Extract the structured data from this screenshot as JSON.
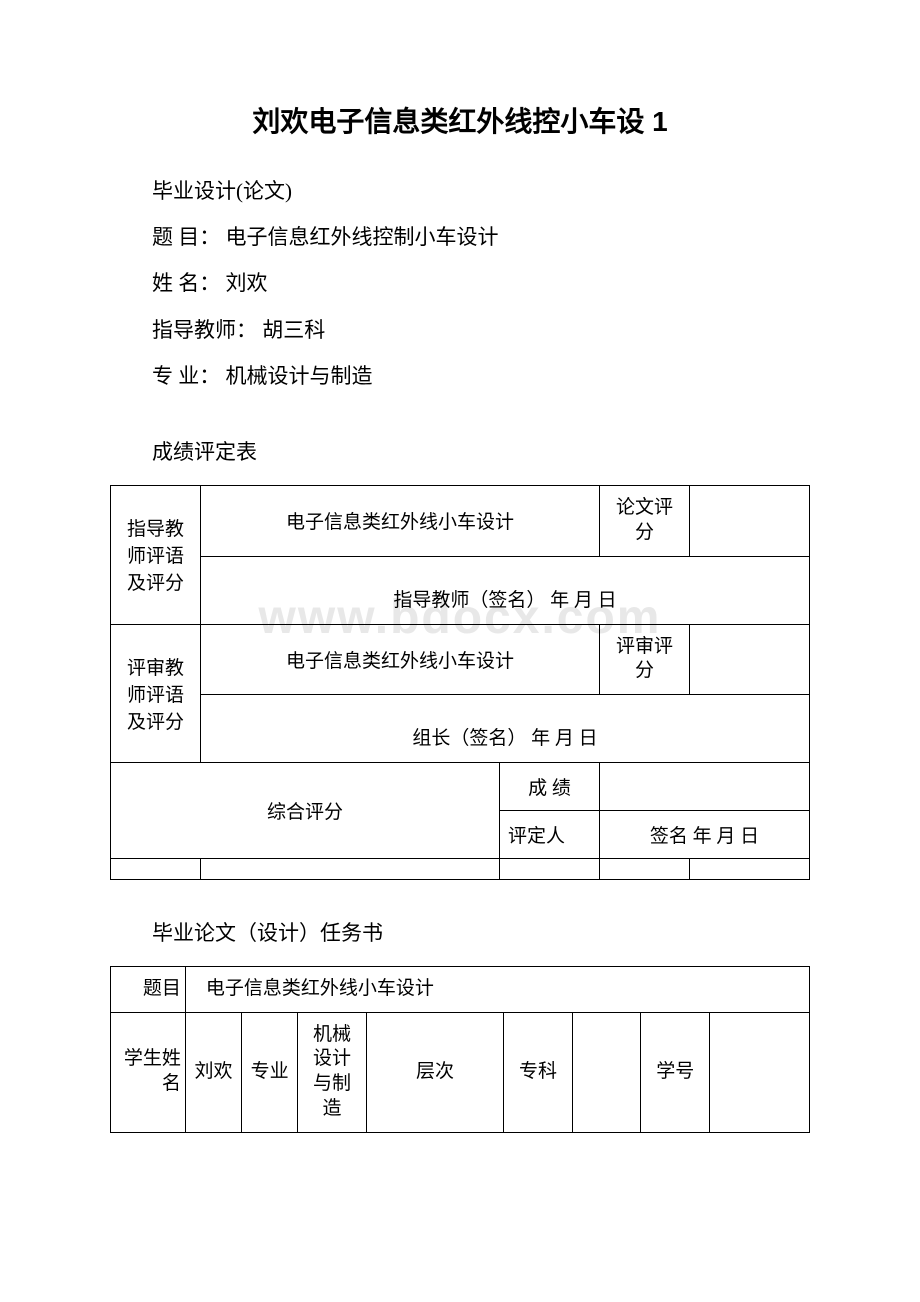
{
  "watermark": "www.bdocx.com",
  "title": "刘欢电子信息类红外线控小车设 1",
  "lines": {
    "l1": "毕业设计(论文)",
    "l2": "题 目：  电子信息红外线控制小车设计",
    "l3": "姓 名：  刘欢",
    "l4": "指导教师：  胡三科",
    "l5": "专   业：  机械设计与制造"
  },
  "section1": "成绩评定表",
  "table1": {
    "row1_label": "指导教师评语及评分",
    "row1_design": "电子信息类红外线小车设计",
    "row1_score_label": "论文评分",
    "row1_sign": "指导教师（签名） 年 月 日",
    "row2_label": "评审教师评语及评分",
    "row2_design": "电子信息类红外线小车设计",
    "row2_score_label": "评审评分",
    "row2_sign": "组长（签名）  年 月 日",
    "comp_label": "综合评分",
    "cj_label": "成 绩",
    "pd_label": "评定人",
    "pd_sign": "签名 年 月 日"
  },
  "section2": "毕业论文（设计）任务书",
  "table2": {
    "topic_label": "题目",
    "topic_value": "电子信息类红外线小车设计",
    "name_label": "学生姓名",
    "name_value": "刘欢",
    "major_label": "专业",
    "major_value": "机械设计与制造",
    "level_label": "层次",
    "spec_label": "专科",
    "id_label": "学号"
  },
  "colors": {
    "text": "#000000",
    "background": "#ffffff",
    "border": "#000000",
    "watermark": "#e8e8e8"
  }
}
